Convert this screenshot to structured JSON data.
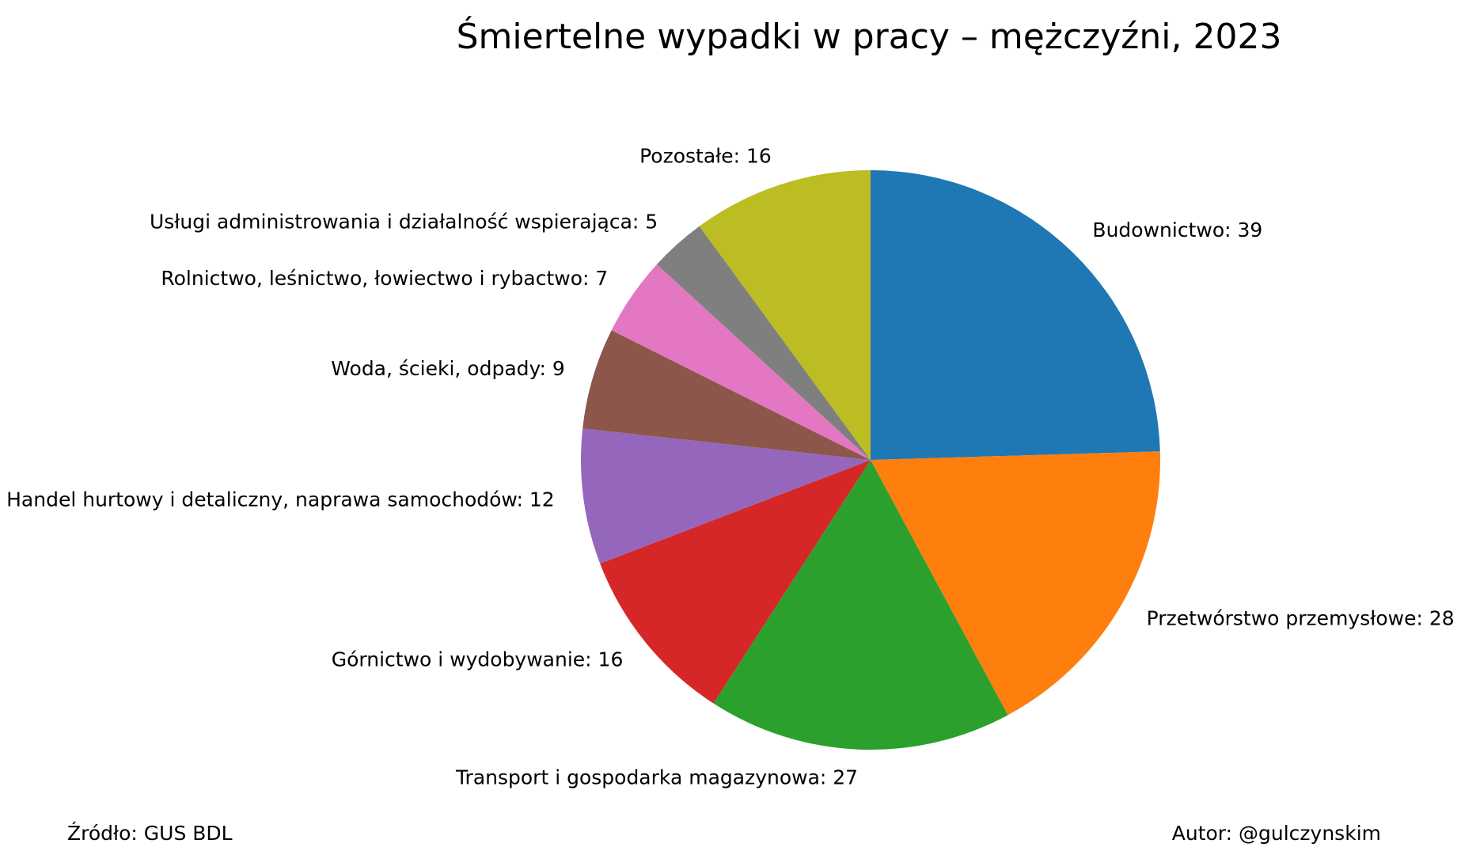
{
  "chart_data": {
    "type": "pie",
    "title": "Śmiertelne wypadki w pracy – mężczyźni, 2023",
    "start_angle_deg": 90,
    "direction": "clockwise",
    "slices": [
      {
        "label": "Budownictwo",
        "value": 39,
        "color": "#1f77b4",
        "display": "Budownictwo: 39"
      },
      {
        "label": "Przetwórstwo przemysłowe",
        "value": 28,
        "color": "#ff7f0e",
        "display": "Przetwórstwo przemysłowe: 28"
      },
      {
        "label": "Transport i gospodarka magazynowa",
        "value": 27,
        "color": "#2ca02c",
        "display": "Transport i gospodarka magazynowa: 27"
      },
      {
        "label": "Górnictwo i wydobywanie",
        "value": 16,
        "color": "#d62728",
        "display": "Górnictwo i wydobywanie: 16"
      },
      {
        "label": "Handel hurtowy i detaliczny, naprawa samochodów",
        "value": 12,
        "color": "#9467bd",
        "display": "Handel hurtowy i detaliczny, naprawa samochodów: 12"
      },
      {
        "label": "Woda, ścieki, odpady",
        "value": 9,
        "color": "#8c564b",
        "display": "Woda, ścieki, odpady: 9"
      },
      {
        "label": "Rolnictwo, leśnictwo, łowiectwo i rybactwo",
        "value": 7,
        "color": "#e377c2",
        "display": "Rolnictwo, leśnictwo, łowiectwo i rybactwo: 7"
      },
      {
        "label": "Usługi administrowania i działalność wspierająca",
        "value": 5,
        "color": "#7f7f7f",
        "display": "Usługi administrowania i działalność wspierająca: 5"
      },
      {
        "label": "Pozostałe",
        "value": 16,
        "color": "#bcbd22",
        "display": "Pozostałe: 16"
      }
    ]
  },
  "footer": {
    "source": "Źródło: GUS BDL",
    "author": "Autor: @gulczynskim"
  }
}
